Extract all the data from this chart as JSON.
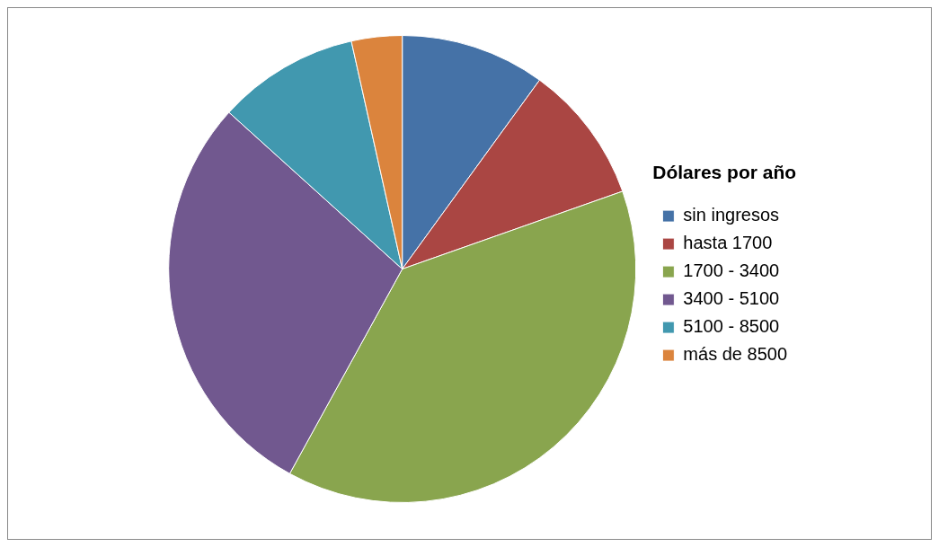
{
  "chart_data": {
    "type": "pie",
    "legend_title": "Dólares por año",
    "categories": [
      "sin ingresos",
      "hasta 1700",
      "1700 - 3400",
      "3400 - 5100",
      "5100 - 8500",
      "más de 8500"
    ],
    "values": [
      10,
      9.6,
      38.4,
      28.7,
      9.8,
      3.5
    ],
    "colors": [
      "#4572a7",
      "#aa4643",
      "#89a54e",
      "#71588f",
      "#4198af",
      "#db843d"
    ],
    "legend": "right"
  }
}
